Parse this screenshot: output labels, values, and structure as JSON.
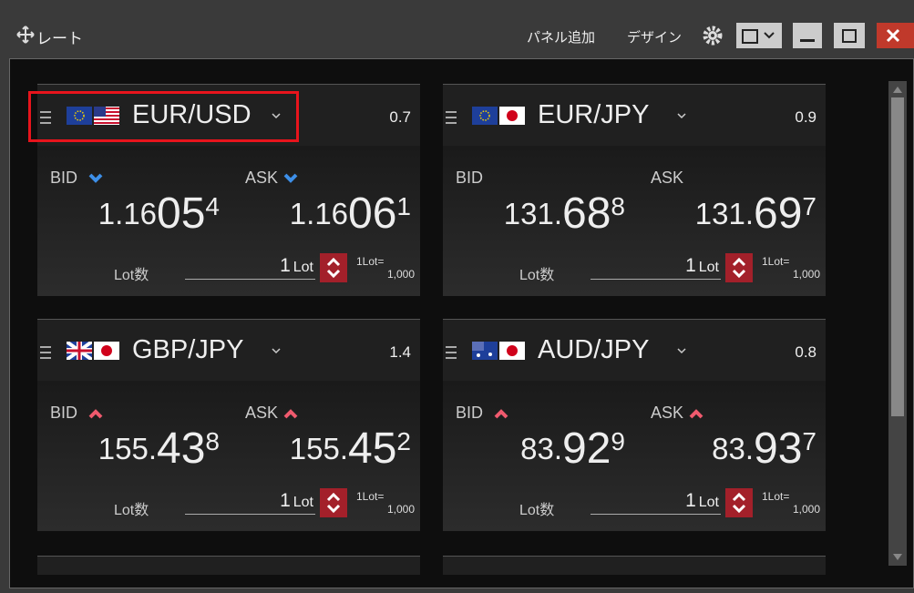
{
  "window": {
    "title": "レート",
    "add_panel": "パネル追加",
    "design": "デザイン"
  },
  "panels": [
    {
      "pair": "EUR/USD",
      "spread": 0.7,
      "trend": "down",
      "highlighted": true,
      "bid_label": "BID",
      "ask_label": "ASK",
      "bid": {
        "prefix": "1.16",
        "main": "05",
        "pip": "4"
      },
      "ask": {
        "prefix": "1.16",
        "main": "06",
        "pip": "1"
      },
      "lot_label": "Lot数",
      "lot": "1",
      "lot_unit": "Lot",
      "lot_size_label": "1Lot=",
      "lot_size": "1,000"
    },
    {
      "pair": "EUR/JPY",
      "spread": 0.9,
      "trend": "none",
      "highlighted": false,
      "bid_label": "BID",
      "ask_label": "ASK",
      "bid": {
        "prefix": "131.",
        "main": "68",
        "pip": "8"
      },
      "ask": {
        "prefix": "131.",
        "main": "69",
        "pip": "7"
      },
      "lot_label": "Lot数",
      "lot": "1",
      "lot_unit": "Lot",
      "lot_size_label": "1Lot=",
      "lot_size": "1,000"
    },
    {
      "pair": "GBP/JPY",
      "spread": 1.4,
      "trend": "up",
      "highlighted": false,
      "bid_label": "BID",
      "ask_label": "ASK",
      "bid": {
        "prefix": "155.",
        "main": "43",
        "pip": "8"
      },
      "ask": {
        "prefix": "155.",
        "main": "45",
        "pip": "2"
      },
      "lot_label": "Lot数",
      "lot": "1",
      "lot_unit": "Lot",
      "lot_size_label": "1Lot=",
      "lot_size": "1,000"
    },
    {
      "pair": "AUD/JPY",
      "spread": 0.8,
      "trend": "up",
      "highlighted": false,
      "bid_label": "BID",
      "ask_label": "ASK",
      "bid": {
        "prefix": "83.",
        "main": "92",
        "pip": "9"
      },
      "ask": {
        "prefix": "83.",
        "main": "93",
        "pip": "7"
      },
      "lot_label": "Lot数",
      "lot": "1",
      "lot_unit": "Lot",
      "lot_size_label": "1Lot=",
      "lot_size": "1,000"
    }
  ]
}
